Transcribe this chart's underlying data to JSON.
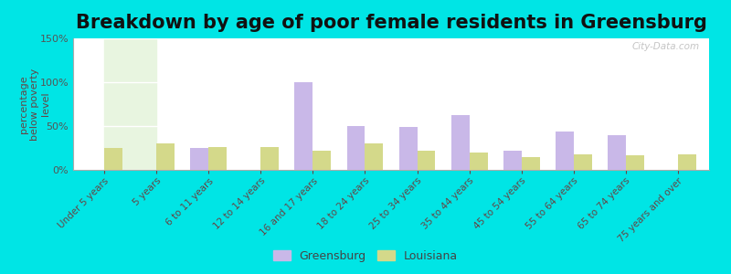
{
  "title": "Breakdown by age of poor female residents in Greensburg",
  "ylabel": "percentage\nbelow poverty\nlevel",
  "categories": [
    "Under 5 years",
    "5 years",
    "6 to 11 years",
    "12 to 14 years",
    "16 and 17 years",
    "18 to 24 years",
    "25 to 34 years",
    "35 to 44 years",
    "45 to 54 years",
    "55 to 64 years",
    "65 to 74 years",
    "75 years and over"
  ],
  "greensburg_values": [
    0,
    0,
    25,
    0,
    100,
    50,
    49,
    62,
    22,
    44,
    40,
    0
  ],
  "louisiana_values": [
    25,
    30,
    26,
    26,
    22,
    30,
    22,
    20,
    15,
    18,
    17,
    18
  ],
  "greensburg_color": "#c9b8e8",
  "louisiana_color": "#d4d98a",
  "background_color": "#00e5e5",
  "ylim": [
    0,
    150
  ],
  "yticks": [
    0,
    50,
    100,
    150
  ],
  "ytick_labels": [
    "0%",
    "50%",
    "100%",
    "150%"
  ],
  "title_fontsize": 15,
  "watermark": "City-Data.com",
  "bar_width": 0.35
}
